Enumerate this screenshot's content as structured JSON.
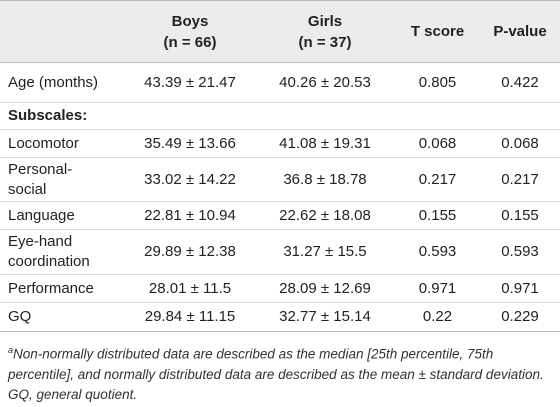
{
  "table": {
    "header": {
      "groups": [
        {
          "label": "Boys",
          "n": "(n = 66)"
        },
        {
          "label": "Girls",
          "n": "(n = 37)"
        }
      ],
      "stats": [
        "T score",
        "P-value"
      ]
    },
    "rows": [
      [
        "Age (months)",
        "43.39 ± 21.47",
        "40.26 ± 20.53",
        "0.805",
        "0.422"
      ],
      [
        "Subscales:"
      ],
      [
        "Locomotor",
        "35.49 ± 13.66",
        "41.08 ± 19.31",
        "0.068",
        "0.068"
      ],
      [
        "Personal-social",
        "33.02 ± 14.22",
        "36.8 ± 18.78",
        "0.217",
        "0.217"
      ],
      [
        "Language",
        "22.81 ± 10.94",
        "22.62 ± 18.08",
        "0.155",
        "0.155"
      ],
      [
        "Eye-hand coordination",
        "29.89 ± 12.38",
        "31.27 ± 15.5",
        "0.593",
        "0.593"
      ],
      [
        "Performance",
        "28.01 ± 11.5",
        "28.09 ± 12.69",
        "0.971",
        "0.971"
      ],
      [
        "GQ",
        "29.84 ± 11.15",
        "32.77 ± 15.14",
        "0.22",
        "0.229"
      ]
    ]
  },
  "footnote": {
    "marker": "a",
    "text": "Non-normally distributed data are described as the median [25th percentile, 75th percentile], and normally distributed data are described as the mean ± standard deviation. GQ, general quotient."
  }
}
